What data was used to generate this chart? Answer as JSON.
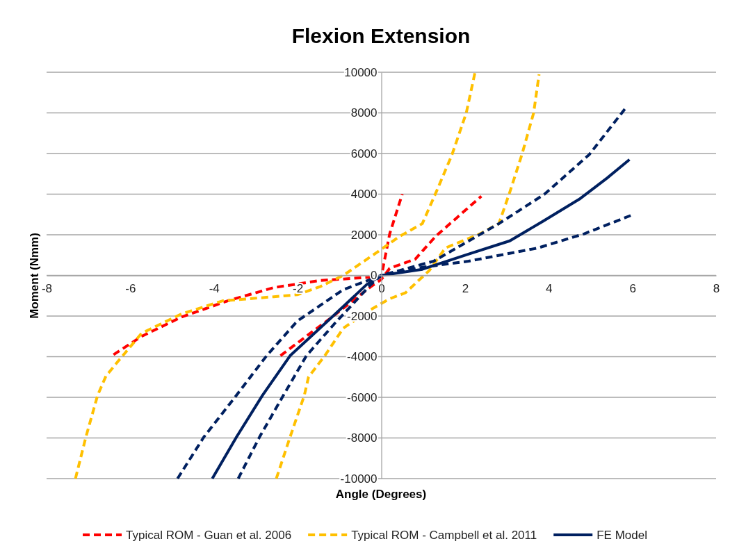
{
  "chart_data": {
    "type": "line",
    "title": "Flexion Extension",
    "xlabel": "Angle (Degrees)",
    "ylabel": "Moment (Nmm)",
    "xlim": [
      -8,
      8
    ],
    "xticks": [
      -8,
      -6,
      -4,
      -2,
      0,
      2,
      4,
      6,
      8
    ],
    "ylim": [
      -10000,
      10000
    ],
    "yticks": [
      -10000,
      -8000,
      -6000,
      -4000,
      -2000,
      0,
      2000,
      4000,
      6000,
      8000,
      10000
    ],
    "grid": "y",
    "legend": "bottom",
    "marker": "none",
    "series": [
      {
        "name": "Typical ROM - Guan et al. 2006",
        "color": "#ff0000",
        "line_style": "dashed",
        "x": [
          -6.4,
          -5.73,
          -4.78,
          -3.67,
          -2.57,
          -1.46,
          -0.35,
          0,
          0.2,
          0.5
        ],
        "values": [
          -3900,
          -3000,
          -2050,
          -1250,
          -600,
          -250,
          -100,
          -50,
          2050,
          4000
        ]
      },
      {
        "color": "#ff0000",
        "line_style": "dashed",
        "x": [
          -2.41,
          -1.18,
          -0.25,
          0,
          0.2,
          0.81,
          1.31,
          1.81,
          2.39
        ],
        "values": [
          -3950,
          -2050,
          -550,
          -200,
          350,
          800,
          1950,
          2850,
          3900
        ]
      },
      {
        "name": "Typical ROM - Campbell et al. 2011",
        "color": "#ffc000",
        "line_style": "dashed",
        "x": [
          -7.31,
          -7.06,
          -6.78,
          -6.58,
          -6.28,
          -5.73,
          -4.78,
          -3.79,
          -2.57,
          -2.01,
          -1.46,
          -0.91,
          -0.13,
          0.42,
          0.98,
          1.31,
          1.69,
          2.03,
          2.24
        ],
        "values": [
          -10000,
          -7950,
          -5900,
          -4950,
          -4200,
          -2850,
          -1900,
          -1250,
          -1050,
          -950,
          -550,
          0,
          1100,
          1900,
          2550,
          4100,
          5950,
          8000,
          10000
        ]
      },
      {
        "color": "#ffc000",
        "line_style": "dashed",
        "x": [
          -2.51,
          -2.18,
          -1.84,
          -1.74,
          -1.35,
          -0.91,
          -0.35,
          0.2,
          0.58,
          1.15,
          1.53,
          2.36,
          2.81,
          3.07,
          3.36,
          3.64,
          3.77
        ],
        "values": [
          -10000,
          -7950,
          -5900,
          -5000,
          -3950,
          -2600,
          -1800,
          -1150,
          -850,
          250,
          1350,
          2050,
          2550,
          4100,
          5950,
          8000,
          9900
        ]
      },
      {
        "name": "FE Model",
        "color": "#002060",
        "line_style": "solid",
        "x": [
          -4.04,
          -3.46,
          -2.84,
          -2.18,
          -1.18,
          -0.35,
          0,
          0.98,
          2.08,
          3.07,
          3.85,
          4.73,
          5.4,
          5.93
        ],
        "values": [
          -10000,
          -7950,
          -5900,
          -3950,
          -2050,
          -450,
          0,
          300,
          1050,
          1700,
          2650,
          3750,
          4800,
          5700
        ]
      },
      {
        "color": "#002060",
        "line_style": "dashed",
        "x": [
          -4.87,
          -4.24,
          -3.5,
          -2.74,
          -2.01,
          -0.91,
          0,
          0.98,
          2.08,
          3.74,
          4.85,
          5.96
        ],
        "values": [
          -10000,
          -7950,
          -6000,
          -3950,
          -2250,
          -700,
          0,
          400,
          700,
          1350,
          2050,
          2950
        ]
      },
      {
        "color": "#002060",
        "line_style": "dashed",
        "x": [
          -3.42,
          -2.91,
          -2.34,
          -1.79,
          -1.13,
          -0.25,
          0,
          1.25,
          2.81,
          3.9,
          4.97,
          5.88
        ],
        "values": [
          -10000,
          -7950,
          -5900,
          -3950,
          -2400,
          -450,
          0,
          700,
          2550,
          4000,
          5950,
          8350
        ]
      }
    ]
  }
}
